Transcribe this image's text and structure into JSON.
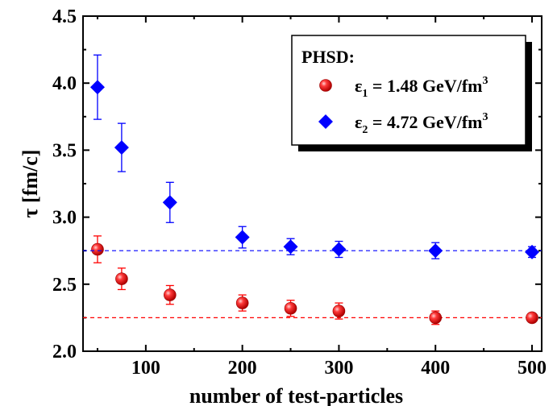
{
  "chart_data": {
    "type": "scatter",
    "xlabel": "number of test-particles",
    "ylabel": "τ [fm/c]",
    "xlim": [
      35,
      510
    ],
    "ylim": [
      2.0,
      4.5
    ],
    "xticks": [
      100,
      200,
      300,
      400,
      500
    ],
    "yticks": [
      2.0,
      2.5,
      3.0,
      3.5,
      4.0,
      4.5
    ],
    "y_tick_labels": [
      "2.0",
      "2.5",
      "3.0",
      "3.5",
      "4.0",
      "4.5"
    ],
    "x_tick_labels": [
      "100",
      "200",
      "300",
      "400",
      "500"
    ],
    "legend": {
      "title": "PHSD:",
      "placement": "top-right"
    },
    "series": [
      {
        "name_parts": {
          "symbol": "ε",
          "sub": "1",
          "text": " = 1.48 GeV/fm",
          "sup": "3"
        },
        "color": "#ff0000",
        "marker": "sphere",
        "x": [
          50,
          75,
          125,
          200,
          250,
          300,
          400,
          500
        ],
        "y": [
          2.76,
          2.54,
          2.42,
          2.36,
          2.32,
          2.3,
          2.25,
          2.25
        ],
        "err": [
          0.1,
          0.08,
          0.07,
          0.06,
          0.06,
          0.06,
          0.05,
          0.03
        ],
        "reference_line": 2.25
      },
      {
        "name_parts": {
          "symbol": "ε",
          "sub": "2",
          "text": " = 4.72 GeV/fm",
          "sup": "3"
        },
        "color": "#0000ff",
        "marker": "diamond",
        "x": [
          50,
          75,
          125,
          200,
          250,
          300,
          400,
          500
        ],
        "y": [
          3.97,
          3.52,
          3.11,
          2.85,
          2.78,
          2.76,
          2.75,
          2.74
        ],
        "err": [
          0.24,
          0.18,
          0.15,
          0.08,
          0.06,
          0.06,
          0.06,
          0.04
        ],
        "reference_line": 2.75
      }
    ],
    "grid": false
  }
}
